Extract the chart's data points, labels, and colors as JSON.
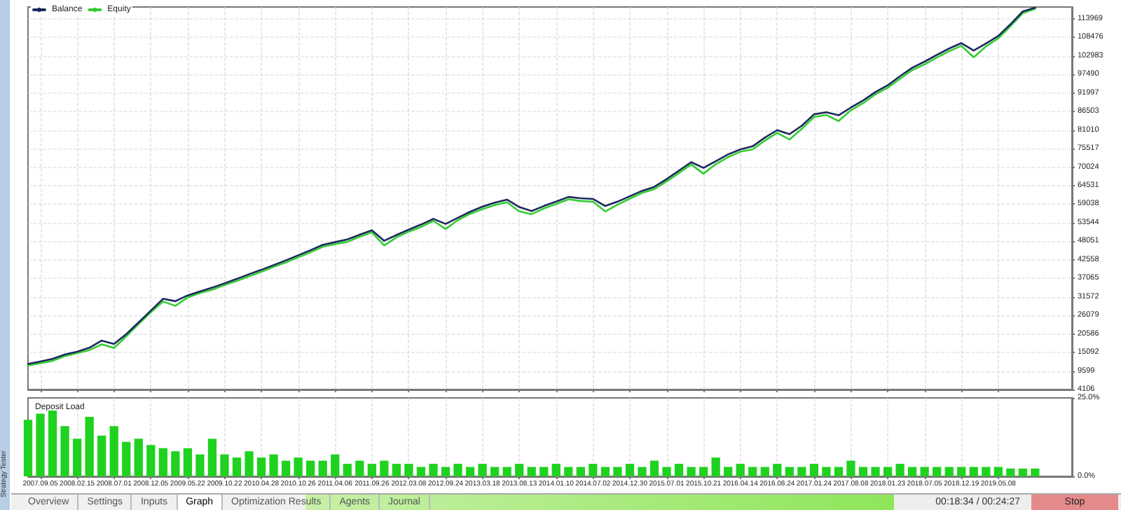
{
  "chart_data": [
    {
      "type": "line",
      "categories": [
        null,
        "2007.09.05",
        null,
        null,
        "2008.02.15",
        null,
        null,
        "2008.07.01",
        null,
        null,
        "2008.12.05",
        null,
        null,
        "2009.05.22",
        null,
        null,
        "2009.10.22",
        null,
        null,
        "2010.04.28",
        null,
        null,
        "2010.10.26",
        null,
        null,
        "2011.04.06",
        null,
        null,
        "2011.09.26",
        null,
        null,
        "2012.03.08",
        null,
        null,
        "2012.09.24",
        null,
        null,
        "2013.03.18",
        null,
        null,
        "2013.08.13",
        null,
        null,
        "2014.01.10",
        null,
        null,
        "2014.07.02",
        null,
        null,
        "2014.12.30",
        null,
        null,
        "2015.07.01",
        null,
        null,
        "2015.10.21",
        null,
        null,
        "2016.04.14",
        null,
        null,
        "2016.08.24",
        null,
        null,
        "2017.01.24",
        null,
        null,
        "2017.08.08",
        null,
        null,
        "2018.01.23",
        null,
        null,
        "2018.07.05",
        null,
        null,
        "2018.12.19",
        null,
        null,
        "2019.05.08",
        null,
        null,
        null,
        null,
        null,
        null
      ],
      "series": [
        {
          "name": "Balance",
          "color": "#1b2a5c",
          "values": [
            11700,
            12400,
            13200,
            14500,
            15300,
            16500,
            18600,
            17600,
            20500,
            24000,
            27500,
            31000,
            30300,
            32000,
            33200,
            34300,
            35600,
            36900,
            38300,
            39600,
            41000,
            42400,
            43900,
            45400,
            47000,
            47800,
            48600,
            50000,
            51300,
            48200,
            49900,
            51500,
            53000,
            54700,
            53200,
            55000,
            56800,
            58300,
            59500,
            60400,
            58200,
            57000,
            58500,
            59800,
            61200,
            60800,
            60600,
            58500,
            59800,
            61400,
            63000,
            64200,
            66500,
            69000,
            71500,
            69800,
            71800,
            73800,
            75300,
            76200,
            78800,
            81000,
            79800,
            82300,
            85700,
            86300,
            85400,
            87700,
            89800,
            92300,
            94300,
            97000,
            99500,
            101300,
            103300,
            105200,
            106800,
            104600,
            106700,
            108900,
            112400,
            116200,
            117300,
            null,
            null,
            null
          ]
        },
        {
          "name": "Equity",
          "color": "#33cc33",
          "values": [
            11200,
            11900,
            12600,
            14000,
            14900,
            15800,
            17500,
            16400,
            19900,
            23500,
            27000,
            30200,
            28900,
            31400,
            32700,
            33700,
            35100,
            36300,
            37700,
            39000,
            40500,
            41800,
            43300,
            44800,
            46400,
            47200,
            47900,
            49400,
            50700,
            46800,
            49200,
            50900,
            52300,
            54100,
            51700,
            54300,
            56200,
            57600,
            58800,
            59600,
            56900,
            56100,
            57800,
            59100,
            60500,
            60000,
            59800,
            56900,
            58900,
            60700,
            62400,
            63500,
            65800,
            68300,
            70800,
            68100,
            70900,
            73000,
            74600,
            75300,
            77900,
            80200,
            78200,
            81400,
            84900,
            85500,
            83700,
            86900,
            89000,
            91600,
            93600,
            96200,
            98800,
            100500,
            102500,
            104400,
            106000,
            102600,
            105800,
            108200,
            111800,
            115700,
            117000,
            null,
            null,
            null
          ]
        }
      ],
      "ylim": [
        4106,
        117500
      ],
      "yticks": [
        4106,
        9599,
        15092,
        20586,
        26079,
        31572,
        37065,
        42558,
        48051,
        53544,
        59038,
        64531,
        70024,
        75517,
        81010,
        86503,
        91997,
        97490,
        102983,
        108476,
        113969
      ],
      "grid": true,
      "legend": "top left",
      "tick_labels": "y",
      "marker": "none",
      "line_style": "solid"
    },
    {
      "type": "bar",
      "title": "Deposit Load",
      "categories": [
        null,
        "2007.09.05",
        null,
        null,
        "2008.02.15",
        null,
        null,
        "2008.07.01",
        null,
        null,
        "2008.12.05",
        null,
        null,
        "2009.05.22",
        null,
        null,
        "2009.10.22",
        null,
        null,
        "2010.04.28",
        null,
        null,
        "2010.10.26",
        null,
        null,
        "2011.04.06",
        null,
        null,
        "2011.09.26",
        null,
        null,
        "2012.03.08",
        null,
        null,
        "2012.09.24",
        null,
        null,
        "2013.03.18",
        null,
        null,
        "2013.08.13",
        null,
        null,
        "2014.01.10",
        null,
        null,
        "2014.07.02",
        null,
        null,
        "2014.12.30",
        null,
        null,
        "2015.07.01",
        null,
        null,
        "2015.10.21",
        null,
        null,
        "2016.04.14",
        null,
        null,
        "2016.08.24",
        null,
        null,
        "2017.01.24",
        null,
        null,
        "2017.08.08",
        null,
        null,
        "2018.01.23",
        null,
        null,
        "2018.07.05",
        null,
        null,
        "2018.12.19",
        null,
        null,
        "2019.05.08",
        null,
        null,
        null,
        null,
        null,
        null
      ],
      "values": [
        18,
        20,
        21,
        16,
        12,
        19,
        13,
        16,
        11,
        12,
        10,
        9,
        8,
        9,
        7,
        12,
        7,
        6,
        8,
        6,
        7,
        5,
        6,
        5,
        5,
        7,
        4,
        5,
        4,
        5,
        4,
        4,
        3,
        4,
        3,
        4,
        3,
        4,
        3,
        3,
        4,
        3,
        3,
        4,
        3,
        3,
        4,
        3,
        3,
        4,
        3,
        5,
        3,
        4,
        3,
        3,
        6,
        3,
        4,
        3,
        3,
        4,
        3,
        3,
        4,
        3,
        3,
        5,
        3,
        3,
        3,
        4,
        3,
        3,
        3,
        3,
        3,
        3,
        3,
        3,
        2.5,
        2.5,
        2.5,
        null,
        null,
        null
      ],
      "color": "#1fd21f",
      "ylim": [
        0,
        25
      ],
      "yticks": [
        {
          "value": 0,
          "label": "0.0%"
        },
        {
          "value": 25,
          "label": "25.0%"
        }
      ],
      "grid": "x"
    },
    {
      "type": "other",
      "annotations": [
        "Strategy Tester",
        "Overview",
        "Settings",
        "Inputs",
        "Graph",
        "Optimization Results",
        "Agents",
        "Journal",
        "00:18:34 / 00:24:27",
        "Stop"
      ]
    }
  ]
}
